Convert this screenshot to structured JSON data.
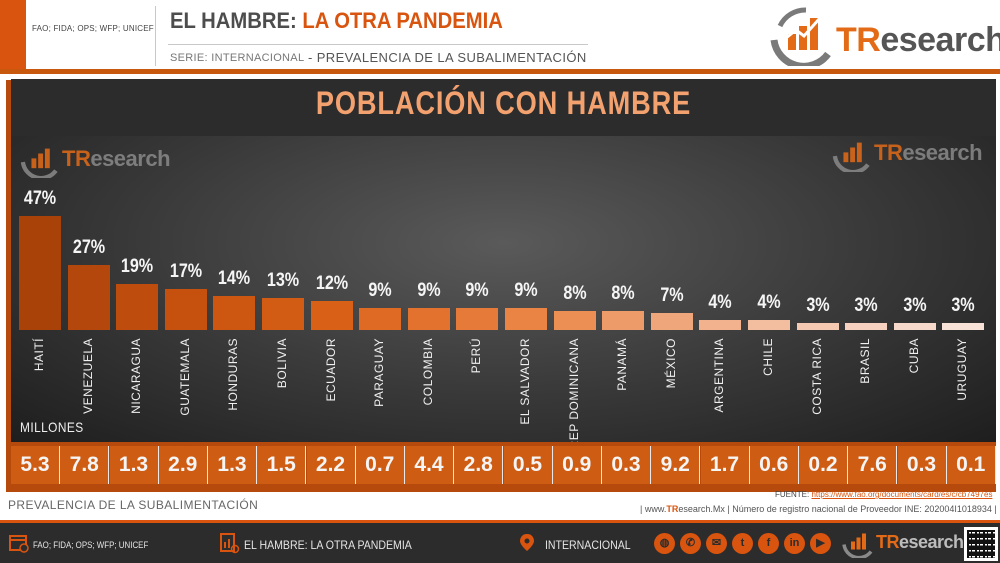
{
  "header": {
    "sources": "FAO; FIDA; OPS; WFP; UNICEF",
    "title_part1": "EL HAMBRE:",
    "title_part2": "LA OTRA PANDEMIA",
    "serie": "SERIE: INTERNACIONAL",
    "subtitle": "- PREVALENCIA DE LA SUBALIMENTACIÓN",
    "logo_text_tr": "TR",
    "logo_text_rest": "esearch"
  },
  "chart_data": {
    "type": "bar",
    "title": "POBLACIÓN CON HAMBRE",
    "categories": [
      "HAITÍ",
      "VENEZUELA",
      "NICARAGUA",
      "GUATEMALA",
      "HONDURAS",
      "BOLIVIA",
      "ECUADOR",
      "PARAGUAY",
      "COLOMBIA",
      "PERÚ",
      "EL SALVADOR",
      "REP DOMINICANA",
      "PANAMÁ",
      "MÉXICO",
      "ARGENTINA",
      "CHILE",
      "COSTA RICA",
      "BRASIL",
      "CUBA",
      "URUGUAY"
    ],
    "values": [
      47,
      27,
      19,
      17,
      14,
      13,
      12,
      9,
      9,
      9,
      9,
      8,
      8,
      7,
      4,
      4,
      3,
      3,
      3,
      3
    ],
    "labels": [
      "47%",
      "27%",
      "19%",
      "17%",
      "14%",
      "13%",
      "12%",
      "9%",
      "9%",
      "9%",
      "9%",
      "8%",
      "8%",
      "7%",
      "4%",
      "4%",
      "3%",
      "3%",
      "3%",
      "3%"
    ],
    "millones_label": "MILLONES",
    "millones": [
      "5.3",
      "7.8",
      "1.3",
      "2.9",
      "1.3",
      "1.5",
      "2.2",
      "0.7",
      "4.4",
      "2.8",
      "0.5",
      "0.9",
      "0.3",
      "9.2",
      "1.7",
      "0.6",
      "0.2",
      "7.6",
      "0.3",
      "0.1"
    ],
    "ylim": [
      0,
      47
    ],
    "grid": false,
    "bar_colors": [
      "#a94209",
      "#b4470b",
      "#bd4c0d",
      "#c6510f",
      "#cd5611",
      "#d35c14",
      "#d96117",
      "#df6a23",
      "#e3722e",
      "#e67a39",
      "#e98445",
      "#eb8f55",
      "#ed9b68",
      "#efa67a",
      "#f1b28d",
      "#f3bda0",
      "#f5c8b1",
      "#f6d1bf",
      "#f7d9cb",
      "#f8e1d6"
    ]
  },
  "watermark": {
    "tr": "TR",
    "rest": "esearch"
  },
  "footer": {
    "prevalencia": "PREVALENCIA DE LA SUBALIMENTACIÓN",
    "fuente_label": "FUENTE:",
    "fuente_url": "https://www.fao.org/documents/card/es/c/cb7497es",
    "www_prefix": "| www.",
    "www_tr": "TR",
    "www_rest": "esearch.Mx",
    "registro": "| Número de registro nacional de Proveedor INE: 202004I1018934 |",
    "sources": "FAO; FIDA; OPS; WFP; UNICEF",
    "topic": "EL HAMBRE: LA OTRA PANDEMIA",
    "region": "INTERNACIONAL",
    "social_icons": [
      "globe-icon",
      "whatsapp-icon",
      "email-icon",
      "twitter-icon",
      "facebook-icon",
      "linkedin-icon",
      "youtube-icon"
    ],
    "logo_tr": "TR",
    "logo_rest": "esearch"
  },
  "colors": {
    "accent": "#d9540e",
    "dark": "#2c2c2c",
    "title": "#f2a16f"
  }
}
